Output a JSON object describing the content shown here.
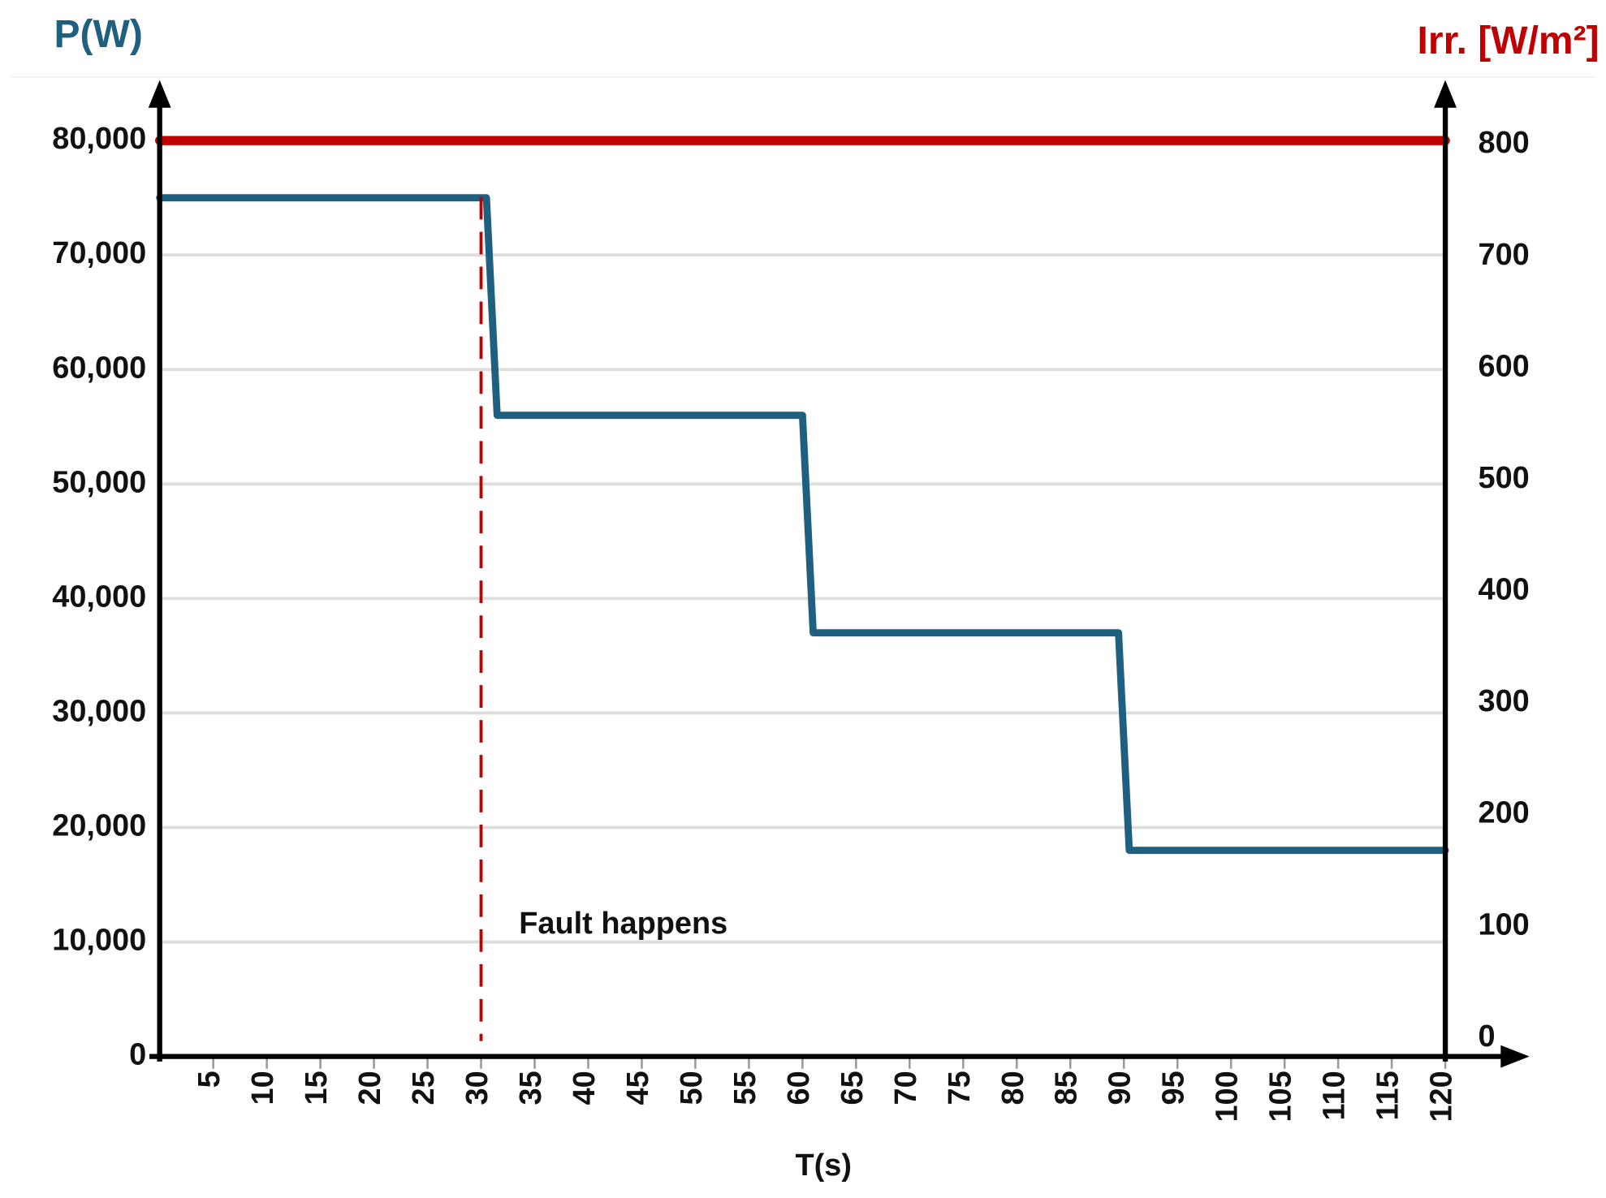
{
  "chart_data": {
    "type": "line",
    "ylabel": "P(W)",
    "y2label": "Irr. [W/m²]",
    "xlabel": "T(s)",
    "xlim": [
      0,
      120
    ],
    "xticks": [
      5,
      10,
      15,
      20,
      25,
      30,
      35,
      40,
      45,
      50,
      55,
      60,
      65,
      70,
      75,
      80,
      85,
      90,
      95,
      100,
      105,
      110,
      115,
      120
    ],
    "ylim": [
      0,
      80000
    ],
    "yticks": [
      0,
      {
        "value": 10000,
        "label": "10,000"
      },
      {
        "value": 20000,
        "label": "20,000"
      },
      {
        "value": 30000,
        "label": "30,000"
      },
      {
        "value": 40000,
        "label": "40,000"
      },
      {
        "value": 50000,
        "label": "50,000"
      },
      {
        "value": 60000,
        "label": "60,000"
      },
      {
        "value": 70000,
        "label": "70,000"
      },
      {
        "value": 80000,
        "label": "80,000"
      }
    ],
    "y2lim": [
      0,
      800
    ],
    "y2ticks": [
      0,
      100,
      200,
      300,
      400,
      500,
      600,
      700,
      800
    ],
    "grid": true,
    "series": [
      {
        "name": "P(W)",
        "color": "#1f5f7f",
        "x": [
          0,
          5,
          10,
          15,
          20,
          25,
          30,
          30.5,
          31.5,
          35,
          40,
          45,
          50,
          55,
          60,
          61,
          65,
          70,
          75,
          80,
          85,
          89.5,
          90.5,
          95,
          100,
          105,
          110,
          115,
          120
        ],
        "values": [
          75000,
          75000,
          75000,
          75000,
          75000,
          75000,
          75000,
          75000,
          56000,
          56000,
          56000,
          56000,
          56000,
          56000,
          56000,
          37000,
          37000,
          37000,
          37000,
          37000,
          37000,
          37000,
          18000,
          18000,
          18000,
          18000,
          18000,
          18000,
          18000
        ]
      },
      {
        "name": "Irr. [W/m²]",
        "color": "#c00000",
        "axis": "y2",
        "x": [
          0,
          120
        ],
        "values": [
          800,
          800
        ]
      }
    ],
    "annotations": [
      {
        "text": "Fault happens",
        "x": 30,
        "color": "#c00000"
      }
    ]
  }
}
